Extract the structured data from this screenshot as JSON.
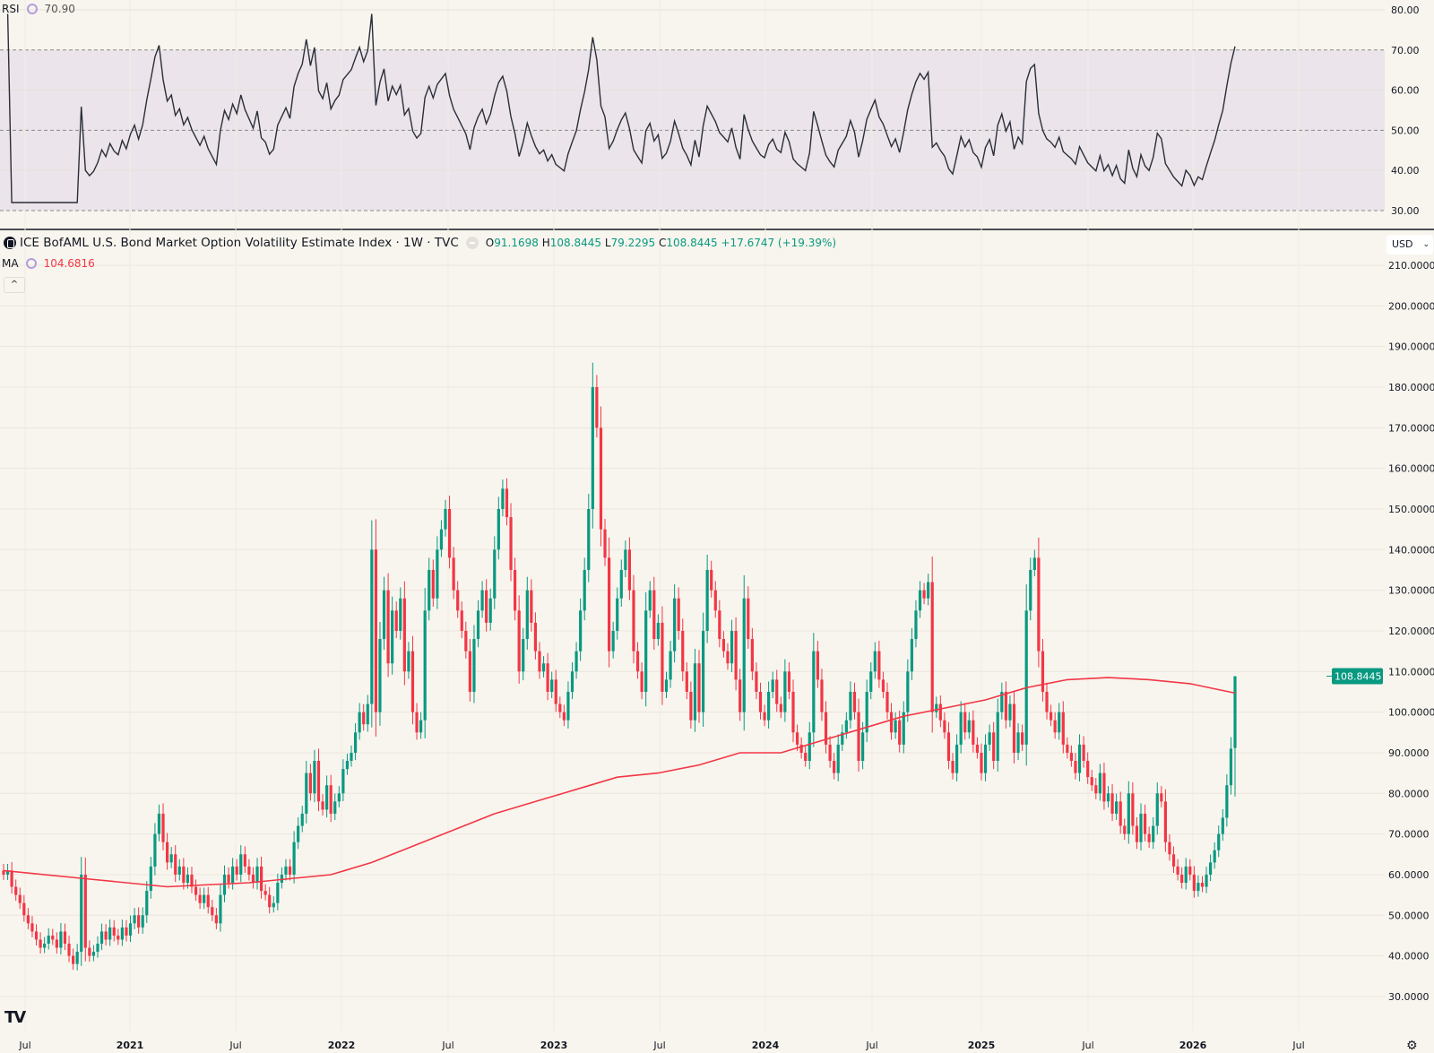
{
  "rsi_legend": {
    "label": "RSI",
    "value": "70.90"
  },
  "header": {
    "title": "ICE BofAML U.S. Bond Market Option Volatility Estimate Index · 1W · TVC",
    "o_label": "O",
    "o": "91.1698",
    "h_label": "H",
    "h": "108.8445",
    "l_label": "L",
    "l": "79.2295",
    "c_label": "C",
    "c": "108.8445",
    "change": "+17.6747 (+19.39%)"
  },
  "ma_legend": {
    "label": "MA",
    "value": "104.6816"
  },
  "currency": "USD",
  "last_price_label": "108.8445",
  "colors": {
    "up": "#089981",
    "down": "#f23645",
    "ma": "#f23645",
    "rsi": "#2a2e39",
    "rsi_band": "#ebe4ea",
    "background": "#f8f5ee"
  },
  "chart_data": [
    {
      "type": "candlestick",
      "interval": "1W",
      "yaxis_ticks": [
        "210.0000",
        "200.0000",
        "190.0000",
        "180.0000",
        "170.0000",
        "160.0000",
        "150.0000",
        "140.0000",
        "130.0000",
        "120.0000",
        "110.0000",
        "100.0000",
        "90.0000",
        "80.0000",
        "70.0000",
        "60.0000",
        "50.0000",
        "40.0000",
        "30.0000"
      ],
      "ylim": [
        30,
        210
      ],
      "xaxis_ticks": [
        "Jul",
        "2021",
        "Jul",
        "2022",
        "Jul",
        "2023",
        "Jul",
        "2024",
        "Jul",
        "2025",
        "Jul",
        "2026",
        "Jul"
      ],
      "grid": true,
      "closes": [
        60,
        61,
        57,
        55,
        53,
        50,
        48,
        46,
        44,
        42,
        43,
        45,
        44,
        42,
        46,
        43,
        40,
        38,
        41,
        60,
        42,
        40,
        41,
        43,
        46,
        44,
        47,
        45,
        44,
        47,
        45,
        48,
        50,
        47,
        50,
        56,
        62,
        70,
        75,
        68,
        63,
        65,
        60,
        62,
        58,
        60,
        57,
        55,
        53,
        55,
        52,
        50,
        48,
        55,
        60,
        58,
        62,
        60,
        65,
        62,
        60,
        58,
        62,
        56,
        55,
        52,
        53,
        58,
        60,
        62,
        60,
        68,
        72,
        75,
        85,
        80,
        88,
        78,
        76,
        82,
        75,
        78,
        80,
        86,
        88,
        90,
        95,
        100,
        97,
        102,
        140,
        100,
        118,
        130,
        112,
        125,
        120,
        128,
        110,
        115,
        100,
        95,
        98,
        125,
        135,
        128,
        140,
        145,
        150,
        138,
        130,
        125,
        120,
        115,
        105,
        118,
        125,
        130,
        122,
        128,
        140,
        150,
        155,
        148,
        135,
        125,
        110,
        118,
        130,
        122,
        115,
        110,
        112,
        105,
        108,
        102,
        100,
        98,
        105,
        110,
        115,
        125,
        135,
        150,
        180,
        170,
        145,
        138,
        115,
        120,
        128,
        135,
        140,
        130,
        115,
        110,
        105,
        125,
        130,
        118,
        122,
        105,
        108,
        115,
        128,
        120,
        110,
        105,
        98,
        112,
        100,
        120,
        135,
        130,
        125,
        118,
        115,
        112,
        120,
        108,
        100,
        128,
        118,
        110,
        105,
        100,
        98,
        105,
        108,
        102,
        100,
        110,
        105,
        95,
        92,
        90,
        88,
        95,
        115,
        108,
        100,
        92,
        88,
        85,
        92,
        95,
        98,
        105,
        100,
        88,
        95,
        105,
        110,
        115,
        108,
        105,
        100,
        95,
        98,
        92,
        100,
        110,
        118,
        125,
        130,
        128,
        132,
        100,
        102,
        98,
        95,
        88,
        85,
        92,
        100,
        95,
        98,
        92,
        90,
        85,
        92,
        95,
        88,
        100,
        105,
        98,
        102,
        90,
        95,
        92,
        125,
        135,
        138,
        115,
        105,
        100,
        98,
        95,
        100,
        92,
        90,
        88,
        85,
        92,
        88,
        84,
        82,
        80,
        85,
        78,
        80,
        75,
        78,
        72,
        70,
        80,
        72,
        68,
        75,
        70,
        68,
        72,
        80,
        78,
        68,
        65,
        62,
        60,
        58,
        62,
        60,
        56,
        58,
        57,
        60,
        63,
        66,
        70,
        74,
        82,
        91,
        108.8445
      ],
      "last": {
        "open": 91.1698,
        "high": 108.8445,
        "low": 79.2295,
        "close": 108.8445
      },
      "ma_series": {
        "name": "MA",
        "points": [
          [
            0,
            61
          ],
          [
            20,
            59
          ],
          [
            40,
            57
          ],
          [
            60,
            58
          ],
          [
            70,
            59
          ],
          [
            80,
            60
          ],
          [
            90,
            63
          ],
          [
            100,
            67
          ],
          [
            110,
            71
          ],
          [
            120,
            75
          ],
          [
            130,
            78
          ],
          [
            140,
            81
          ],
          [
            150,
            84
          ],
          [
            160,
            85
          ],
          [
            170,
            87
          ],
          [
            180,
            90
          ],
          [
            190,
            90
          ],
          [
            200,
            93
          ],
          [
            210,
            96
          ],
          [
            220,
            99
          ],
          [
            230,
            101
          ],
          [
            240,
            103
          ],
          [
            250,
            106
          ],
          [
            260,
            108
          ],
          [
            270,
            108.5
          ],
          [
            280,
            108
          ],
          [
            290,
            107
          ],
          [
            301,
            104.6816
          ]
        ]
      }
    },
    {
      "type": "line",
      "name": "RSI",
      "ylim": [
        30,
        80
      ],
      "yaxis_ticks": [
        "80.00",
        "70.00",
        "60.00",
        "50.00",
        "40.00",
        "30.00"
      ],
      "band": [
        30,
        70
      ],
      "levels": [
        70,
        50,
        30
      ],
      "last_value": 70.9
    }
  ]
}
